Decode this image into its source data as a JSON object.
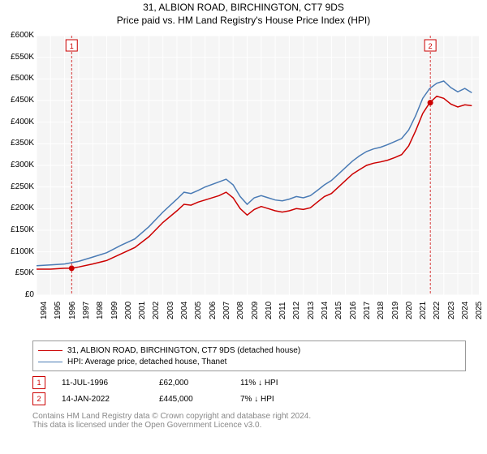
{
  "title1": "31, ALBION ROAD, BIRCHINGTON, CT7 9DS",
  "title2": "Price paid vs. HM Land Registry's House Price Index (HPI)",
  "chart": {
    "type": "line",
    "background_color": "#f5f5f5",
    "grid_color": "#ffffff",
    "grid_on": true,
    "x_years": [
      1994,
      1995,
      1996,
      1997,
      1998,
      1999,
      2000,
      2001,
      2002,
      2003,
      2004,
      2005,
      2006,
      2007,
      2008,
      2009,
      2010,
      2011,
      2012,
      2013,
      2014,
      2015,
      2016,
      2017,
      2018,
      2019,
      2020,
      2021,
      2022,
      2023,
      2024,
      2025
    ],
    "xlim": [
      1994,
      2025.5
    ],
    "ylim": [
      0,
      600
    ],
    "ytick_step": 50,
    "ytick_prefix": "£",
    "ytick_suffix": "K",
    "label_fontsize": 10,
    "series": [
      {
        "name": "31, ALBION ROAD, BIRCHINGTON, CT7 9DS (detached house)",
        "color": "#cc0000",
        "line_width": 1.5,
        "points": [
          [
            1994.0,
            60
          ],
          [
            1995.0,
            60
          ],
          [
            1996.0,
            62
          ],
          [
            1996.5,
            62
          ],
          [
            1997.0,
            65
          ],
          [
            1998.0,
            72
          ],
          [
            1999.0,
            80
          ],
          [
            2000.0,
            95
          ],
          [
            2001.0,
            110
          ],
          [
            2002.0,
            135
          ],
          [
            2003.0,
            168
          ],
          [
            2004.0,
            195
          ],
          [
            2004.5,
            210
          ],
          [
            2005.0,
            208
          ],
          [
            2005.5,
            215
          ],
          [
            2006.0,
            220
          ],
          [
            2007.0,
            230
          ],
          [
            2007.5,
            238
          ],
          [
            2008.0,
            225
          ],
          [
            2008.5,
            200
          ],
          [
            2009.0,
            185
          ],
          [
            2009.5,
            198
          ],
          [
            2010.0,
            205
          ],
          [
            2010.5,
            200
          ],
          [
            2011.0,
            195
          ],
          [
            2011.5,
            192
          ],
          [
            2012.0,
            195
          ],
          [
            2012.5,
            200
          ],
          [
            2013.0,
            198
          ],
          [
            2013.5,
            202
          ],
          [
            2014.0,
            215
          ],
          [
            2014.5,
            228
          ],
          [
            2015.0,
            235
          ],
          [
            2015.5,
            250
          ],
          [
            2016.0,
            265
          ],
          [
            2016.5,
            280
          ],
          [
            2017.0,
            290
          ],
          [
            2017.5,
            300
          ],
          [
            2018.0,
            305
          ],
          [
            2018.5,
            308
          ],
          [
            2019.0,
            312
          ],
          [
            2019.5,
            318
          ],
          [
            2020.0,
            325
          ],
          [
            2020.5,
            345
          ],
          [
            2021.0,
            380
          ],
          [
            2021.5,
            420
          ],
          [
            2022.0,
            445
          ],
          [
            2022.5,
            460
          ],
          [
            2023.0,
            455
          ],
          [
            2023.5,
            442
          ],
          [
            2024.0,
            435
          ],
          [
            2024.5,
            440
          ],
          [
            2025.0,
            438
          ]
        ]
      },
      {
        "name": "HPI: Average price, detached house, Thanet",
        "color": "#4a7bb5",
        "line_width": 1.5,
        "points": [
          [
            1994.0,
            68
          ],
          [
            1995.0,
            70
          ],
          [
            1996.0,
            72
          ],
          [
            1997.0,
            78
          ],
          [
            1998.0,
            88
          ],
          [
            1999.0,
            98
          ],
          [
            2000.0,
            115
          ],
          [
            2001.0,
            130
          ],
          [
            2002.0,
            158
          ],
          [
            2003.0,
            192
          ],
          [
            2004.0,
            222
          ],
          [
            2004.5,
            238
          ],
          [
            2005.0,
            235
          ],
          [
            2005.5,
            242
          ],
          [
            2006.0,
            250
          ],
          [
            2007.0,
            262
          ],
          [
            2007.5,
            268
          ],
          [
            2008.0,
            255
          ],
          [
            2008.5,
            228
          ],
          [
            2009.0,
            210
          ],
          [
            2009.5,
            225
          ],
          [
            2010.0,
            230
          ],
          [
            2010.5,
            225
          ],
          [
            2011.0,
            220
          ],
          [
            2011.5,
            218
          ],
          [
            2012.0,
            222
          ],
          [
            2012.5,
            228
          ],
          [
            2013.0,
            225
          ],
          [
            2013.5,
            230
          ],
          [
            2014.0,
            242
          ],
          [
            2014.5,
            255
          ],
          [
            2015.0,
            265
          ],
          [
            2015.5,
            280
          ],
          [
            2016.0,
            295
          ],
          [
            2016.5,
            310
          ],
          [
            2017.0,
            322
          ],
          [
            2017.5,
            332
          ],
          [
            2018.0,
            338
          ],
          [
            2018.5,
            342
          ],
          [
            2019.0,
            348
          ],
          [
            2019.5,
            355
          ],
          [
            2020.0,
            362
          ],
          [
            2020.5,
            382
          ],
          [
            2021.0,
            415
          ],
          [
            2021.5,
            455
          ],
          [
            2022.0,
            478
          ],
          [
            2022.5,
            490
          ],
          [
            2023.0,
            495
          ],
          [
            2023.5,
            480
          ],
          [
            2024.0,
            470
          ],
          [
            2024.5,
            478
          ],
          [
            2025.0,
            468
          ]
        ]
      }
    ],
    "markers": [
      {
        "n": "1",
        "x": 1996.5,
        "y": 62,
        "line_color": "#cc0000",
        "box_border": "#cc0000",
        "box_text_color": "#cc0000",
        "dot_color": "#cc0000"
      },
      {
        "n": "2",
        "x": 2022.04,
        "y": 445,
        "line_color": "#cc0000",
        "box_border": "#cc0000",
        "box_text_color": "#cc0000",
        "dot_color": "#cc0000"
      }
    ]
  },
  "legend": {
    "items": [
      {
        "color": "#cc0000",
        "label": "31, ALBION ROAD, BIRCHINGTON, CT7 9DS (detached house)"
      },
      {
        "color": "#4a7bb5",
        "label": "HPI: Average price, detached house, Thanet"
      }
    ]
  },
  "trades": [
    {
      "n": "1",
      "border": "#cc0000",
      "text_color": "#cc0000",
      "date": "11-JUL-1996",
      "price": "£62,000",
      "diff": "11% ↓ HPI"
    },
    {
      "n": "2",
      "border": "#cc0000",
      "text_color": "#cc0000",
      "date": "14-JAN-2022",
      "price": "£445,000",
      "diff": "7% ↓ HPI"
    }
  ],
  "attribution": {
    "line1": "Contains HM Land Registry data © Crown copyright and database right 2024.",
    "line2": "This data is licensed under the Open Government Licence v3.0."
  }
}
